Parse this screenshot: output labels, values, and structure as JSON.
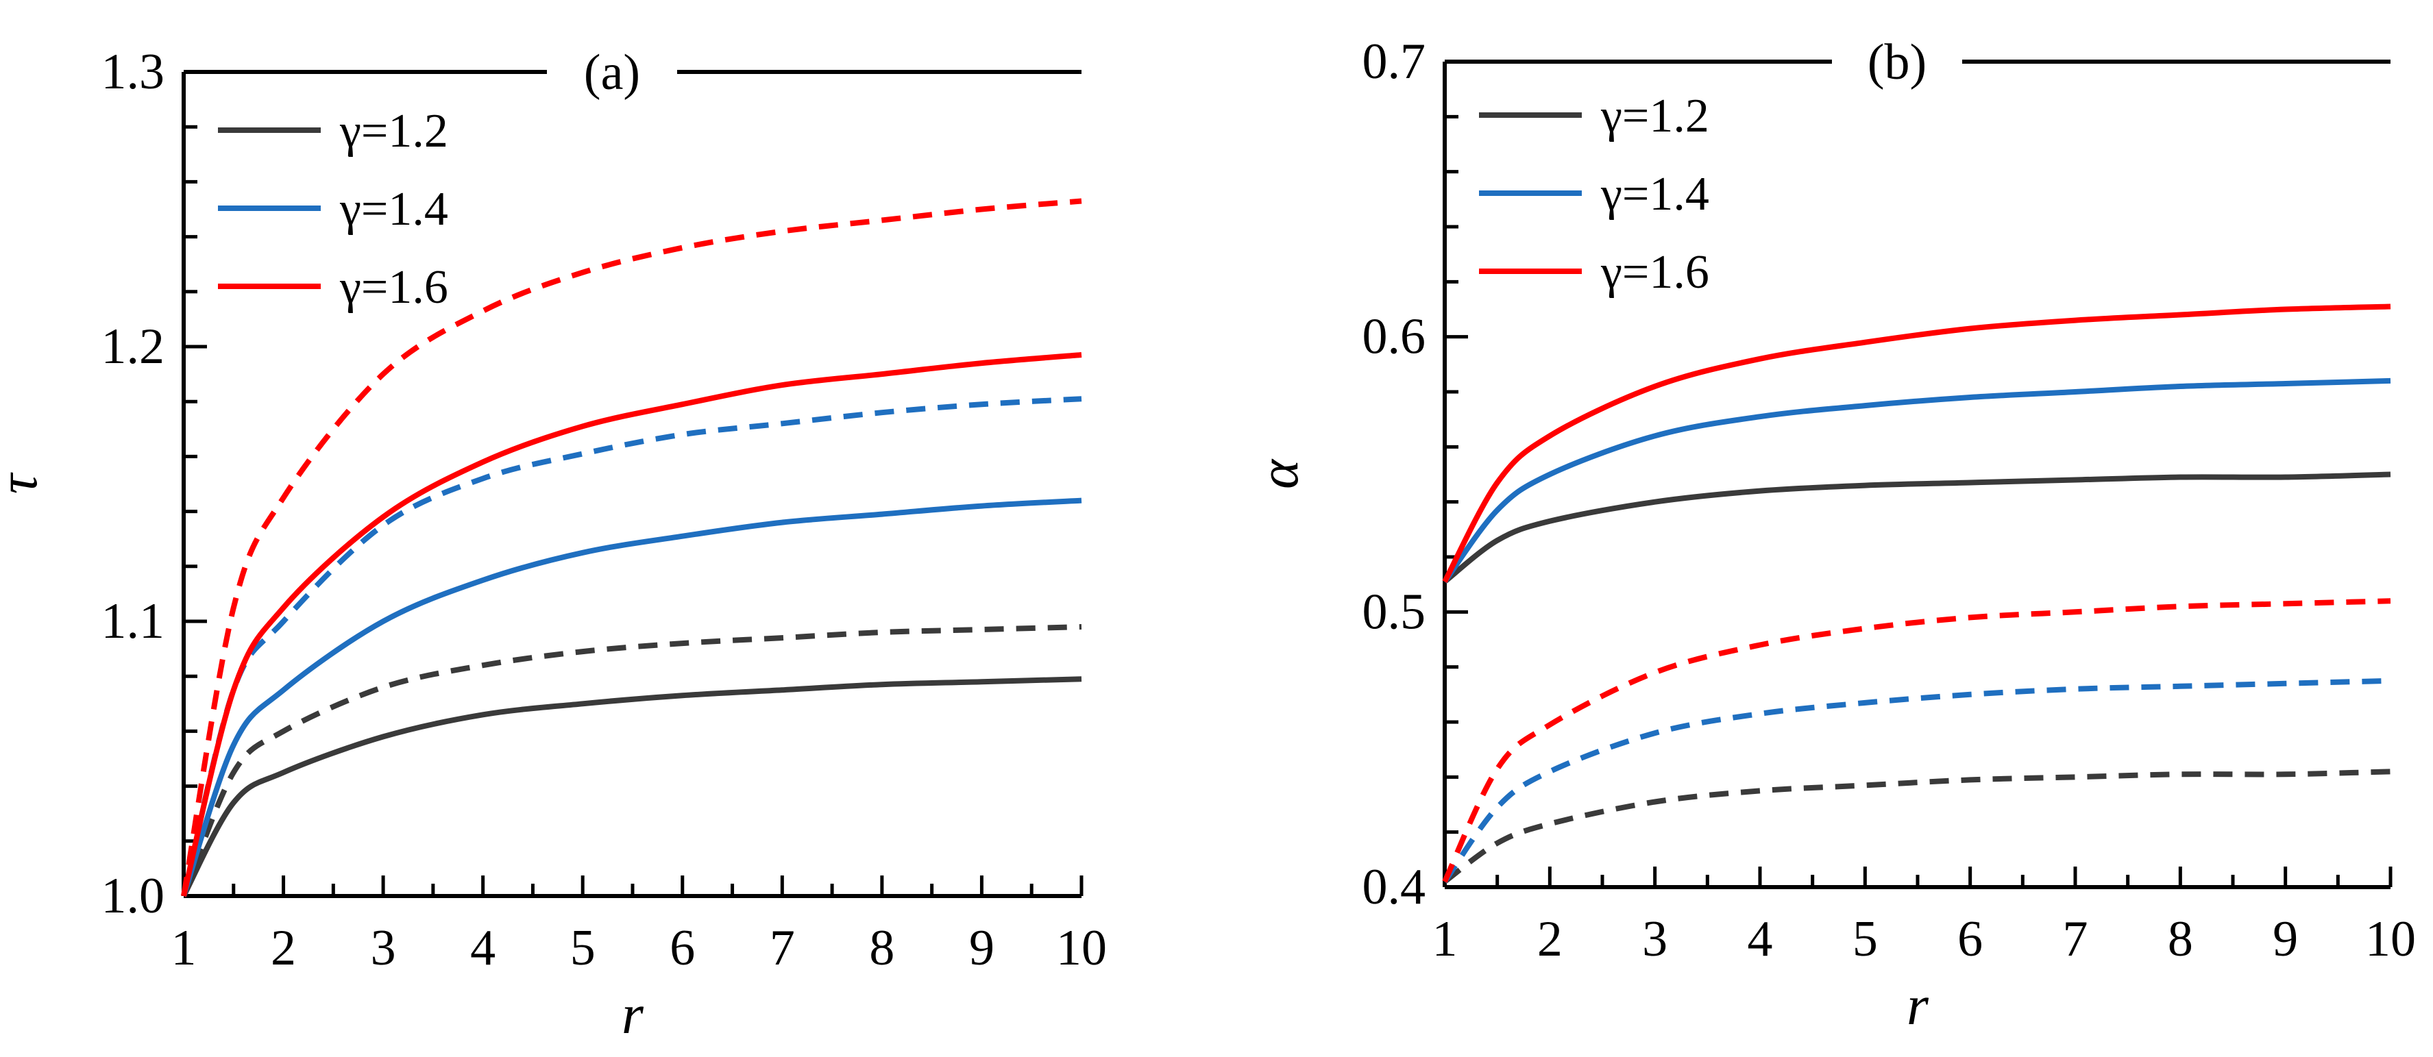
{
  "chart_data": [
    {
      "type": "line",
      "panel": "(a)",
      "xlabel": "r",
      "ylabel": "τ",
      "xlim": [
        1,
        10
      ],
      "ylim": [
        1.0,
        1.3
      ],
      "xticks": [
        1,
        2,
        3,
        4,
        5,
        6,
        7,
        8,
        9,
        10
      ],
      "yticks": [
        1.0,
        1.1,
        1.2,
        1.3
      ],
      "ytick_labels": [
        "1.0",
        "1.1",
        "1.2",
        "1.3"
      ],
      "x": [
        1,
        1.5,
        2,
        3,
        4,
        5,
        6,
        7,
        8,
        9,
        10
      ],
      "legend": [
        "γ=1.2",
        "γ=1.4",
        "γ=1.6"
      ],
      "series": [
        {
          "name": "γ=1.2",
          "style": "solid",
          "color": "#3a3a3a",
          "values": [
            1.0,
            1.034,
            1.045,
            1.058,
            1.066,
            1.07,
            1.073,
            1.075,
            1.077,
            1.078,
            1.079
          ]
        },
        {
          "name": "γ=1.2 (dashed)",
          "style": "dashed",
          "color": "#3a3a3a",
          "values": [
            1.0,
            1.045,
            1.06,
            1.076,
            1.084,
            1.089,
            1.092,
            1.094,
            1.096,
            1.097,
            1.098
          ]
        },
        {
          "name": "γ=1.4",
          "style": "solid",
          "color": "#1f6fc0",
          "values": [
            1.0,
            1.055,
            1.075,
            1.1,
            1.115,
            1.125,
            1.131,
            1.136,
            1.139,
            1.142,
            1.144
          ]
        },
        {
          "name": "γ=1.4 (dashed)",
          "style": "dashed",
          "color": "#1f6fc0",
          "values": [
            1.0,
            1.075,
            1.1,
            1.135,
            1.152,
            1.161,
            1.168,
            1.172,
            1.176,
            1.179,
            1.181
          ]
        },
        {
          "name": "γ=1.6",
          "style": "solid",
          "color": "#ff0000",
          "values": [
            1.0,
            1.075,
            1.105,
            1.138,
            1.158,
            1.171,
            1.179,
            1.186,
            1.19,
            1.194,
            1.197
          ]
        },
        {
          "name": "γ=1.6 (dashed)",
          "style": "dashed",
          "color": "#ff0000",
          "values": [
            1.0,
            1.105,
            1.145,
            1.19,
            1.213,
            1.227,
            1.236,
            1.242,
            1.246,
            1.25,
            1.253
          ]
        }
      ]
    },
    {
      "type": "line",
      "panel": "(b)",
      "xlabel": "r",
      "ylabel": "α",
      "xlim": [
        1,
        10
      ],
      "ylim": [
        0.4,
        0.7
      ],
      "xticks": [
        1,
        2,
        3,
        4,
        5,
        6,
        7,
        8,
        9,
        10
      ],
      "yticks": [
        0.4,
        0.5,
        0.6,
        0.7
      ],
      "ytick_labels": [
        "0.4",
        "0.5",
        "0.6",
        "0.7"
      ],
      "x": [
        1,
        1.5,
        2,
        3,
        4,
        5,
        6,
        7,
        8,
        9,
        10
      ],
      "legend": [
        "γ=1.2",
        "γ=1.4",
        "γ=1.6"
      ],
      "series": [
        {
          "name": "γ=1.2",
          "style": "solid",
          "color": "#3a3a3a",
          "values": [
            0.511,
            0.526,
            0.533,
            0.54,
            0.544,
            0.546,
            0.547,
            0.548,
            0.549,
            0.549,
            0.55
          ]
        },
        {
          "name": "γ=1.2 (dashed)",
          "style": "dashed",
          "color": "#3a3a3a",
          "values": [
            0.402,
            0.416,
            0.423,
            0.431,
            0.435,
            0.437,
            0.439,
            0.44,
            0.441,
            0.441,
            0.442
          ]
        },
        {
          "name": "γ=1.4",
          "style": "solid",
          "color": "#1f6fc0",
          "values": [
            0.511,
            0.537,
            0.55,
            0.564,
            0.571,
            0.575,
            0.578,
            0.58,
            0.582,
            0.583,
            0.584
          ]
        },
        {
          "name": "γ=1.4 (dashed)",
          "style": "dashed",
          "color": "#1f6fc0",
          "values": [
            0.402,
            0.429,
            0.442,
            0.456,
            0.463,
            0.467,
            0.47,
            0.472,
            0.473,
            0.474,
            0.475
          ]
        },
        {
          "name": "γ=1.6",
          "style": "solid",
          "color": "#ff0000",
          "values": [
            0.511,
            0.547,
            0.564,
            0.582,
            0.592,
            0.598,
            0.603,
            0.606,
            0.608,
            0.61,
            0.611
          ]
        },
        {
          "name": "γ=1.6 (dashed)",
          "style": "dashed",
          "color": "#ff0000",
          "values": [
            0.402,
            0.443,
            0.459,
            0.478,
            0.488,
            0.494,
            0.498,
            0.5,
            0.502,
            0.503,
            0.504
          ]
        }
      ]
    }
  ]
}
